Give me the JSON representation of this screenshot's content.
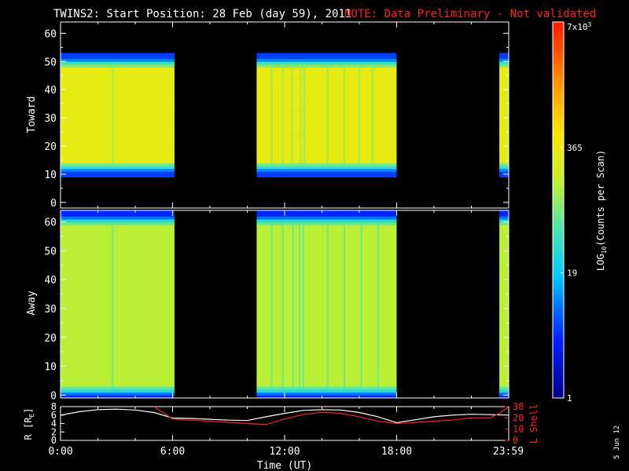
{
  "title": {
    "main": "TWINS2: Start Position: 28 Feb (day  59), 2011",
    "note": "NOTE: Data Preliminary - Not validated"
  },
  "stamp": "5 Jun 12",
  "colors": {
    "background": "#000000",
    "axes": "#ffffff",
    "note": "#ff2020",
    "lshell": "#ff2020",
    "radius": "#ffffff"
  },
  "chart_data": [
    {
      "type": "heatmap",
      "name": "toward-panel",
      "ylabel": "Toward",
      "ylim": [
        -2,
        64
      ],
      "yticks": [
        "0",
        "10",
        "20",
        "30",
        "40",
        "50",
        "60"
      ],
      "xlim": [
        0,
        24
      ],
      "data_intervals_hours": [
        [
          0,
          6.1
        ],
        [
          10.5,
          18.0
        ],
        [
          23.5,
          24
        ]
      ],
      "core_band": [
        13,
        49
      ],
      "core_value": 300,
      "edge_values": [
        40,
        5
      ],
      "bright_streak_hours": [
        2.8,
        11.3,
        11.9,
        12.4,
        12.85,
        13.05,
        14.3,
        15.2,
        16.0,
        16.7
      ]
    },
    {
      "type": "heatmap",
      "name": "away-panel",
      "ylabel": "Away",
      "ylim": [
        -1,
        64
      ],
      "yticks": [
        "0",
        "10",
        "20",
        "30",
        "40",
        "50",
        "60"
      ],
      "xlim": [
        0,
        24
      ],
      "data_intervals_hours": [
        [
          0,
          6.1
        ],
        [
          10.5,
          18.0
        ],
        [
          23.5,
          24
        ]
      ],
      "core_band": [
        2,
        60
      ],
      "core_value": 150,
      "edge_values": [
        30,
        4
      ],
      "dim_streak_hours": [
        2.8,
        11.3,
        11.9,
        12.45,
        12.8,
        13.0,
        14.3,
        15.2,
        16.1,
        17.0
      ]
    },
    {
      "type": "colorbar",
      "label": "LOG10(Counts per Scan)",
      "label_base": "LOG",
      "label_sub": "10",
      "label_rest": "(Counts per Scan)",
      "scale": "log",
      "range": [
        1,
        7000
      ],
      "tick_labels": [
        "7x10",
        "365",
        "19",
        "1"
      ],
      "top_exponent": "3",
      "tick_values": [
        7000,
        365,
        19,
        1
      ]
    },
    {
      "type": "line",
      "name": "ephemeris-panel",
      "xlabel": "Time (UT)",
      "xticks": [
        "0:00",
        "6:00",
        "12:00",
        "18:00",
        "23:59"
      ],
      "xtick_values": [
        0,
        6,
        12,
        18,
        23.98
      ],
      "xlim": [
        0,
        24
      ],
      "left_axis": {
        "label": "R [R",
        "label_sub": "E",
        "label_end": "]",
        "ylim": [
          0,
          8
        ],
        "ticks": [
          "0",
          "2",
          "4",
          "6",
          "8"
        ]
      },
      "right_axis": {
        "label": "L Shell",
        "ylim": [
          0,
          30
        ],
        "ticks": [
          "0",
          "10",
          "20",
          "30"
        ]
      },
      "series": [
        {
          "name": "R [RE]",
          "axis": "left",
          "x": [
            0,
            1,
            2,
            3,
            4,
            5,
            6,
            7,
            8,
            9,
            10,
            11,
            12,
            13,
            14,
            15,
            16,
            17,
            18,
            19,
            20,
            21,
            22,
            23,
            24
          ],
          "y": [
            6.0,
            6.8,
            7.3,
            7.4,
            7.2,
            6.6,
            5.3,
            5.2,
            5.0,
            4.8,
            4.7,
            5.6,
            6.4,
            7.1,
            7.3,
            7.2,
            6.6,
            5.6,
            4.2,
            4.9,
            5.6,
            6.0,
            6.2,
            6.1,
            6.0
          ]
        },
        {
          "name": "L Shell",
          "axis": "right",
          "x": [
            5.0,
            6.0,
            8.0,
            10.0,
            11.0,
            12.0,
            13.0,
            14.0,
            15.0,
            16.0,
            17.0,
            18.0,
            19.0,
            20.0,
            21.0,
            22.0,
            23.0,
            23.5,
            24.0
          ],
          "y": [
            30,
            19,
            17,
            15,
            14,
            19,
            23,
            25,
            24,
            21,
            17,
            15,
            16,
            17,
            18,
            20,
            20,
            24,
            30
          ]
        }
      ]
    }
  ]
}
